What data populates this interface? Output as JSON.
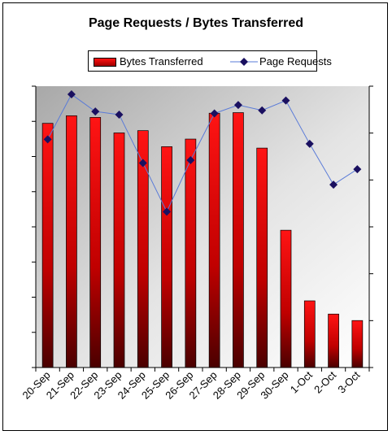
{
  "chart_data": {
    "type": "bar",
    "title": "Page Requests / Bytes Transferred",
    "categories": [
      "20-Sep",
      "21-Sep",
      "22-Sep",
      "23-Sep",
      "24-Sep",
      "25-Sep",
      "26-Sep",
      "27-Sep",
      "28-Sep",
      "29-Sep",
      "30-Sep",
      "1-Oct",
      "2-Oct",
      "3-Oct"
    ],
    "series": [
      {
        "name": "Bytes Transferred",
        "type": "bar",
        "axis": "left",
        "values": [
          0.868,
          0.895,
          0.889,
          0.834,
          0.842,
          0.785,
          0.812,
          0.904,
          0.906,
          0.78,
          0.488,
          0.237,
          0.19,
          0.167
        ]
      },
      {
        "name": "Page Requests",
        "type": "line",
        "axis": "right",
        "values": [
          0.811,
          0.971,
          0.91,
          0.899,
          0.727,
          0.554,
          0.737,
          0.903,
          0.933,
          0.914,
          0.949,
          0.795,
          0.65,
          0.705
        ]
      }
    ],
    "ylim": [
      0,
      1.0
    ],
    "y2lim": [
      0,
      1.0
    ],
    "y_ticks_labeled": false,
    "legend": "top",
    "plot_background": "gradient gray to white",
    "colors": {
      "bar_top": "#ff1414",
      "bar_bottom": "#4a0000",
      "line": "#5a7bd8",
      "marker": "#1a1060"
    }
  }
}
